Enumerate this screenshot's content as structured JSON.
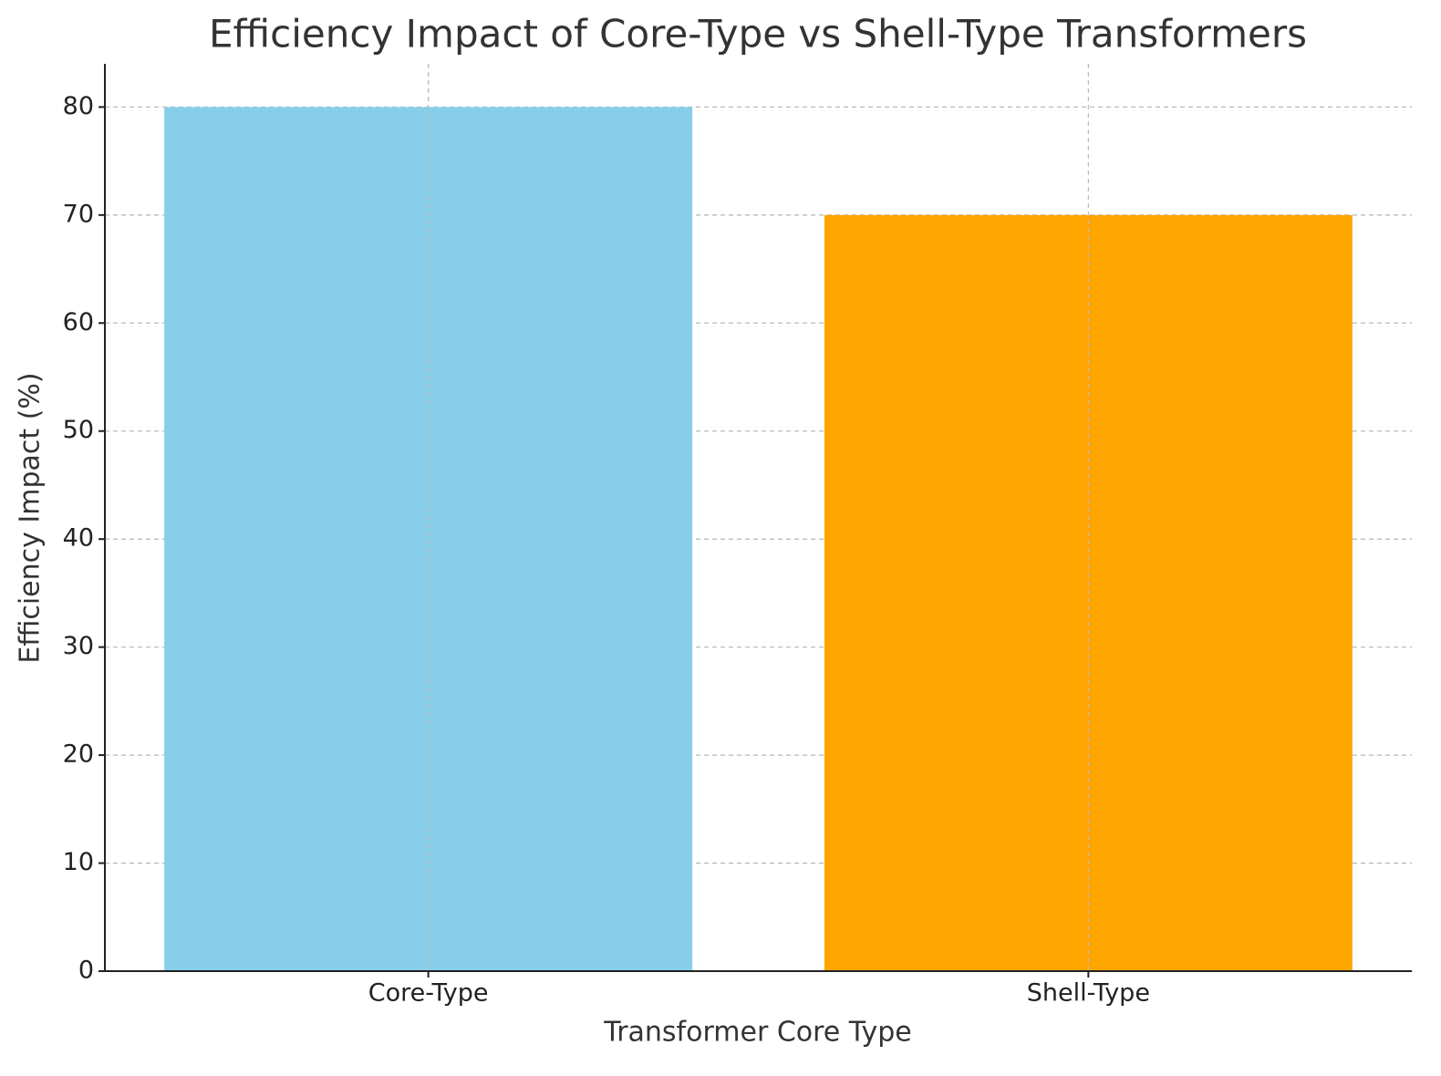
{
  "chart_data": {
    "type": "bar",
    "title": "Efficiency Impact of Core-Type vs Shell-Type Transformers",
    "x_label": "Transformer Core Type",
    "y_label": "Efficiency Impact (%)",
    "categories": [
      "Core-Type",
      "Shell-Type"
    ],
    "values": [
      80,
      70
    ],
    "colors": [
      "#87ceeb",
      "#ffa500"
    ],
    "ylim": [
      0,
      84
    ],
    "yticks": [
      0,
      10,
      20,
      30,
      40,
      50,
      60,
      70,
      80
    ],
    "grid": true
  }
}
